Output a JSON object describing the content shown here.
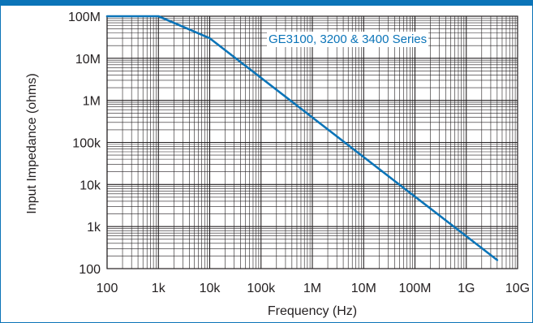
{
  "chart_data": {
    "type": "line",
    "title": "",
    "xlabel": "Frequency (Hz)",
    "ylabel": "Input Impedance (ohms)",
    "x_scale": "log",
    "y_scale": "log",
    "xlim": [
      100,
      10000000000
    ],
    "ylim": [
      100,
      100000000
    ],
    "grid": true,
    "x_tick_values": [
      100,
      1000,
      10000,
      100000,
      1000000,
      10000000,
      100000000,
      1000000000,
      10000000000
    ],
    "x_tick_labels": [
      "100",
      "1k",
      "10k",
      "100k",
      "1M",
      "10M",
      "100M",
      "1G",
      "10G"
    ],
    "y_tick_values": [
      100000000,
      10000000,
      1000000,
      100000,
      10000,
      1000,
      100
    ],
    "y_tick_labels": [
      "100M",
      "10M",
      "1M",
      "100k",
      "10k",
      "1k",
      "100"
    ],
    "series": [
      {
        "name": "GE3100, 3200 & 3400 Series",
        "color": "#0b74b8",
        "x": [
          100,
          1000,
          10000,
          4000000000
        ],
        "y": [
          100000000,
          100000000,
          30000000,
          160
        ]
      }
    ],
    "annotation_position": "top-right"
  }
}
